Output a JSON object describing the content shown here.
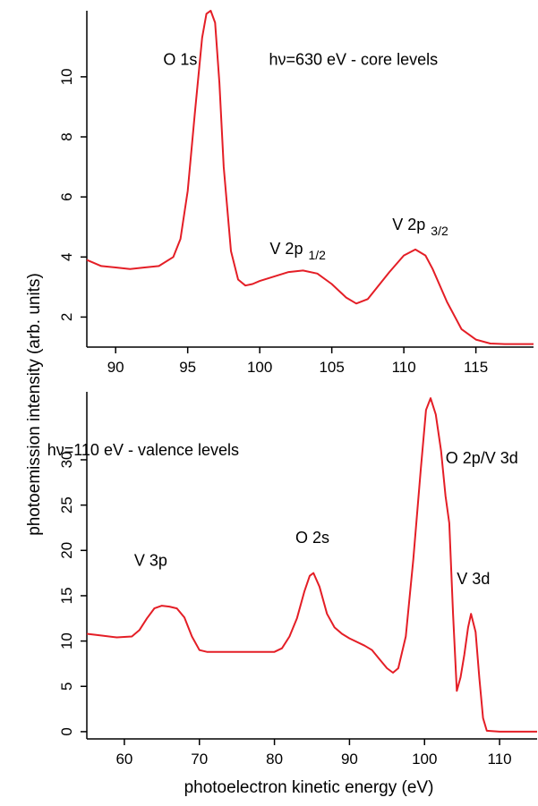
{
  "chart_data": [
    {
      "type": "line",
      "panel": "top",
      "annotation": "hν=630 eV - core levels",
      "peak_labels": [
        {
          "text": "O 1s",
          "sub": "",
          "x": 93.3,
          "y": 10.4
        },
        {
          "text": "V 2p",
          "sub": "1/2",
          "x": 100.7,
          "y": 4.1
        },
        {
          "text": "V 2p",
          "sub": "3/2",
          "x": 109.2,
          "y": 4.9
        }
      ],
      "xlim": [
        88,
        119
      ],
      "ylim": [
        1,
        12.2
      ],
      "xticks": [
        90,
        95,
        100,
        105,
        110,
        115
      ],
      "yticks": [
        2,
        4,
        6,
        8,
        10
      ],
      "color": "#e41e26",
      "series": [
        {
          "x": [
            88,
            89,
            90,
            91,
            92,
            93,
            94,
            94.5,
            95,
            95.5,
            96,
            96.3,
            96.6,
            96.9,
            97.2,
            97.5,
            98,
            98.5,
            99,
            99.5,
            100,
            101,
            102,
            103,
            104,
            105,
            106,
            106.7,
            107.5,
            108,
            109,
            110,
            110.8,
            111.5,
            112,
            113,
            114,
            115,
            116,
            117,
            118,
            119
          ],
          "y": [
            3.9,
            3.7,
            3.65,
            3.6,
            3.65,
            3.7,
            4.0,
            4.6,
            6.2,
            8.8,
            11.3,
            12.1,
            12.2,
            11.8,
            9.8,
            7.0,
            4.2,
            3.25,
            3.05,
            3.1,
            3.2,
            3.35,
            3.5,
            3.55,
            3.45,
            3.1,
            2.65,
            2.45,
            2.6,
            2.9,
            3.5,
            4.05,
            4.25,
            4.05,
            3.6,
            2.5,
            1.6,
            1.25,
            1.12,
            1.1,
            1.1,
            1.1
          ]
        }
      ]
    },
    {
      "type": "line",
      "panel": "bottom",
      "annotation": "hν=110 eV - valence levels",
      "peak_labels": [
        {
          "text": "V 3p",
          "sub": "",
          "x": 61.3,
          "y": 18.3
        },
        {
          "text": "O 2s",
          "sub": "",
          "x": 82.8,
          "y": 20.8
        },
        {
          "text": "O 2p/V 3d",
          "sub": "",
          "x": 102.8,
          "y": 29.6
        },
        {
          "text": "V 3d",
          "sub": "",
          "x": 104.3,
          "y": 16.3
        }
      ],
      "xlim": [
        55,
        115
      ],
      "ylim": [
        -0.8,
        37.5
      ],
      "xticks": [
        60,
        70,
        80,
        90,
        100,
        110
      ],
      "yticks": [
        0,
        5,
        10,
        15,
        20,
        25,
        30
      ],
      "color": "#e41e26",
      "series": [
        {
          "x": [
            55,
            57,
            59,
            61,
            62,
            63,
            64,
            65,
            66,
            67,
            68,
            69,
            70,
            71,
            72,
            75,
            78,
            80,
            81,
            82,
            83,
            84,
            84.7,
            85.2,
            86,
            87,
            88,
            89,
            90,
            92,
            93,
            94,
            95,
            95.8,
            96.5,
            97.5,
            98.5,
            99.5,
            100.2,
            100.8,
            101.5,
            102.2,
            102.8,
            103.3,
            103.8,
            104.3,
            104.8,
            105.3,
            105.8,
            106.2,
            106.8,
            107.3,
            107.8,
            108.3,
            110,
            115
          ],
          "y": [
            10.8,
            10.6,
            10.4,
            10.5,
            11.2,
            12.5,
            13.6,
            13.9,
            13.8,
            13.6,
            12.6,
            10.5,
            9.0,
            8.8,
            8.8,
            8.8,
            8.8,
            8.8,
            9.2,
            10.5,
            12.5,
            15.5,
            17.2,
            17.5,
            16.0,
            13.0,
            11.5,
            10.8,
            10.3,
            9.5,
            9.0,
            8.0,
            7.0,
            6.5,
            7.0,
            10.5,
            19.0,
            29.0,
            35.5,
            36.8,
            35.0,
            31.0,
            26.0,
            23.0,
            13.0,
            4.5,
            6.0,
            8.5,
            11.5,
            13.0,
            11.0,
            6.0,
            1.5,
            0.1,
            0.0,
            0.0
          ]
        }
      ]
    }
  ],
  "shared_ylabel": "photoemission intensity (arb. units)",
  "shared_xlabel": "photoelectron kinetic energy (eV)"
}
